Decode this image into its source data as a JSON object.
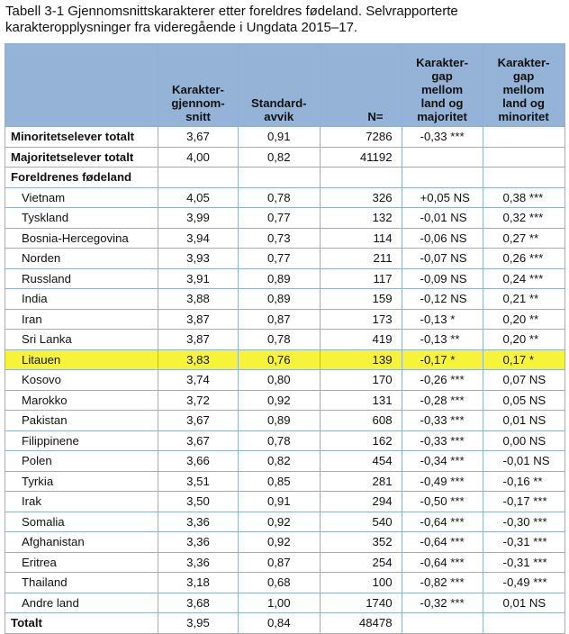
{
  "caption": "Tabell 3-1 Gjennomsnittskarakterer etter foreldres fødeland. Selvrapporterte karakteropplysninger fra videregående i Ungdata 2015–17.",
  "headers": [
    "",
    "Karakter-gjennom-snitt",
    "Standard-avvik",
    "N=",
    "Karakter-gap mellom land og majoritet",
    "Karakter-gap mellom land og minoritet"
  ],
  "highlight_color": "#f7f33a",
  "header_color": "#95b3d7",
  "rows": [
    {
      "label": "Minoritetselever totalt",
      "bold": true,
      "mean": "3,67",
      "sd": "0,91",
      "n": "7286",
      "gap_maj": "-0,33 ***",
      "gap_min": ""
    },
    {
      "label": "Majoritetselever totalt",
      "bold": true,
      "mean": "4,00",
      "sd": "0,82",
      "n": "41192",
      "gap_maj": "",
      "gap_min": ""
    },
    {
      "label": "Foreldrenes fødeland",
      "bold": true,
      "mean": "",
      "sd": "",
      "n": "",
      "gap_maj": "",
      "gap_min": ""
    },
    {
      "label": "Vietnam",
      "mean": "4,05",
      "sd": "0,78",
      "n": "326",
      "gap_maj": "+0,05 NS",
      "gap_min": "0,38 ***"
    },
    {
      "label": "Tyskland",
      "mean": "3,99",
      "sd": "0,77",
      "n": "132",
      "gap_maj": "-0,01 NS",
      "gap_min": "0,32 ***"
    },
    {
      "label": "Bosnia-Hercegovina",
      "mean": "3,94",
      "sd": "0,73",
      "n": "114",
      "gap_maj": "-0,06 NS",
      "gap_min": "0,27 **"
    },
    {
      "label": "Norden",
      "mean": "3,93",
      "sd": "0,77",
      "n": "211",
      "gap_maj": "-0,07 NS",
      "gap_min": "0,26 ***"
    },
    {
      "label": "Russland",
      "mean": "3,91",
      "sd": "0,89",
      "n": "117",
      "gap_maj": "-0,09 NS",
      "gap_min": "0,24 ***"
    },
    {
      "label": "India",
      "mean": "3,88",
      "sd": "0,89",
      "n": "159",
      "gap_maj": "-0,12 NS",
      "gap_min": "0,21 **"
    },
    {
      "label": "Iran",
      "mean": "3,87",
      "sd": "0,87",
      "n": "173",
      "gap_maj": "-0,13 *",
      "gap_min": "0,20 **"
    },
    {
      "label": "Sri Lanka",
      "mean": "3,87",
      "sd": "0,78",
      "n": "419",
      "gap_maj": "-0,13 **",
      "gap_min": "0,20 **"
    },
    {
      "label": "Litauen",
      "highlight": true,
      "mean": "3,83",
      "sd": "0,76",
      "n": "139",
      "gap_maj": "-0,17 *",
      "gap_min": "0,17 *"
    },
    {
      "label": "Kosovo",
      "mean": "3,74",
      "sd": "0,80",
      "n": "170",
      "gap_maj": "-0,26 ***",
      "gap_min": "0,07 NS"
    },
    {
      "label": "Marokko",
      "mean": "3,72",
      "sd": "0,92",
      "n": "131",
      "gap_maj": "-0,28 ***",
      "gap_min": "0,05 NS"
    },
    {
      "label": "Pakistan",
      "mean": "3,67",
      "sd": "0,89",
      "n": "608",
      "gap_maj": "-0,33 ***",
      "gap_min": "0,01 NS"
    },
    {
      "label": "Filippinene",
      "mean": "3,67",
      "sd": "0,78",
      "n": "162",
      "gap_maj": "-0,33 ***",
      "gap_min": "0,00 NS"
    },
    {
      "label": "Polen",
      "mean": "3,66",
      "sd": "0,82",
      "n": "454",
      "gap_maj": "-0,34 ***",
      "gap_min": "-0,01 NS"
    },
    {
      "label": "Tyrkia",
      "mean": "3,51",
      "sd": "0,85",
      "n": "281",
      "gap_maj": "-0,49 ***",
      "gap_min": "-0,16 **"
    },
    {
      "label": "Irak",
      "mean": "3,50",
      "sd": "0,91",
      "n": "294",
      "gap_maj": "-0,50 ***",
      "gap_min": "-0,17 ***"
    },
    {
      "label": "Somalia",
      "mean": "3,36",
      "sd": "0,92",
      "n": "540",
      "gap_maj": "-0,64 ***",
      "gap_min": "-0,30 ***"
    },
    {
      "label": "Afghanistan",
      "mean": "3,36",
      "sd": "0,92",
      "n": "352",
      "gap_maj": "-0,64 ***",
      "gap_min": "-0,31 ***"
    },
    {
      "label": "Eritrea",
      "mean": "3,36",
      "sd": "0,87",
      "n": "254",
      "gap_maj": "-0,64 ***",
      "gap_min": "-0,31 ***"
    },
    {
      "label": "Thailand",
      "mean": "3,18",
      "sd": "0,68",
      "n": "100",
      "gap_maj": "-0,82 ***",
      "gap_min": "-0,49 ***"
    },
    {
      "label": "Andre land",
      "mean": "3,68",
      "sd": "1,00",
      "n": "1740",
      "gap_maj": "-0,32 ***",
      "gap_min": "0,01 NS"
    },
    {
      "label": "Totalt",
      "bold": true,
      "mean": "3,95",
      "sd": "0,84",
      "n": "48478",
      "gap_maj": "",
      "gap_min": ""
    }
  ]
}
